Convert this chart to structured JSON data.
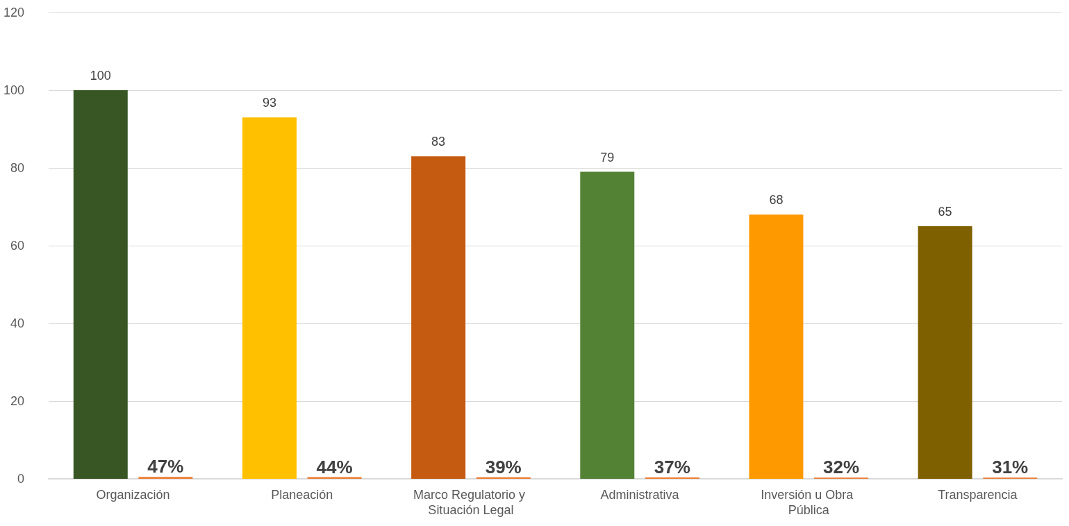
{
  "chart_data": {
    "type": "bar",
    "categories": [
      "Organización",
      "Planeación",
      "Marco Regulatorio y Situación Legal",
      "Administrativa",
      "Inversión u Obra Pública",
      "Transparencia"
    ],
    "series": [
      {
        "colors": [
          "#375623",
          "#ffc000",
          "#c55a11",
          "#548235",
          "#ff9900",
          "#7f6000"
        ],
        "values": [
          100,
          93,
          83,
          79,
          68,
          65
        ],
        "value_labels": [
          "100",
          "93",
          "83",
          "79",
          "68",
          "65"
        ]
      },
      {
        "color": "#ed7d31",
        "values": [
          0.47,
          0.44,
          0.39,
          0.37,
          0.32,
          0.31
        ],
        "value_labels": [
          "47%",
          "44%",
          "39%",
          "37%",
          "32%",
          "31%"
        ]
      }
    ],
    "ylim": [
      0,
      120
    ],
    "yticks": [
      0,
      20,
      40,
      60,
      80,
      100,
      120
    ],
    "grid": "y"
  }
}
